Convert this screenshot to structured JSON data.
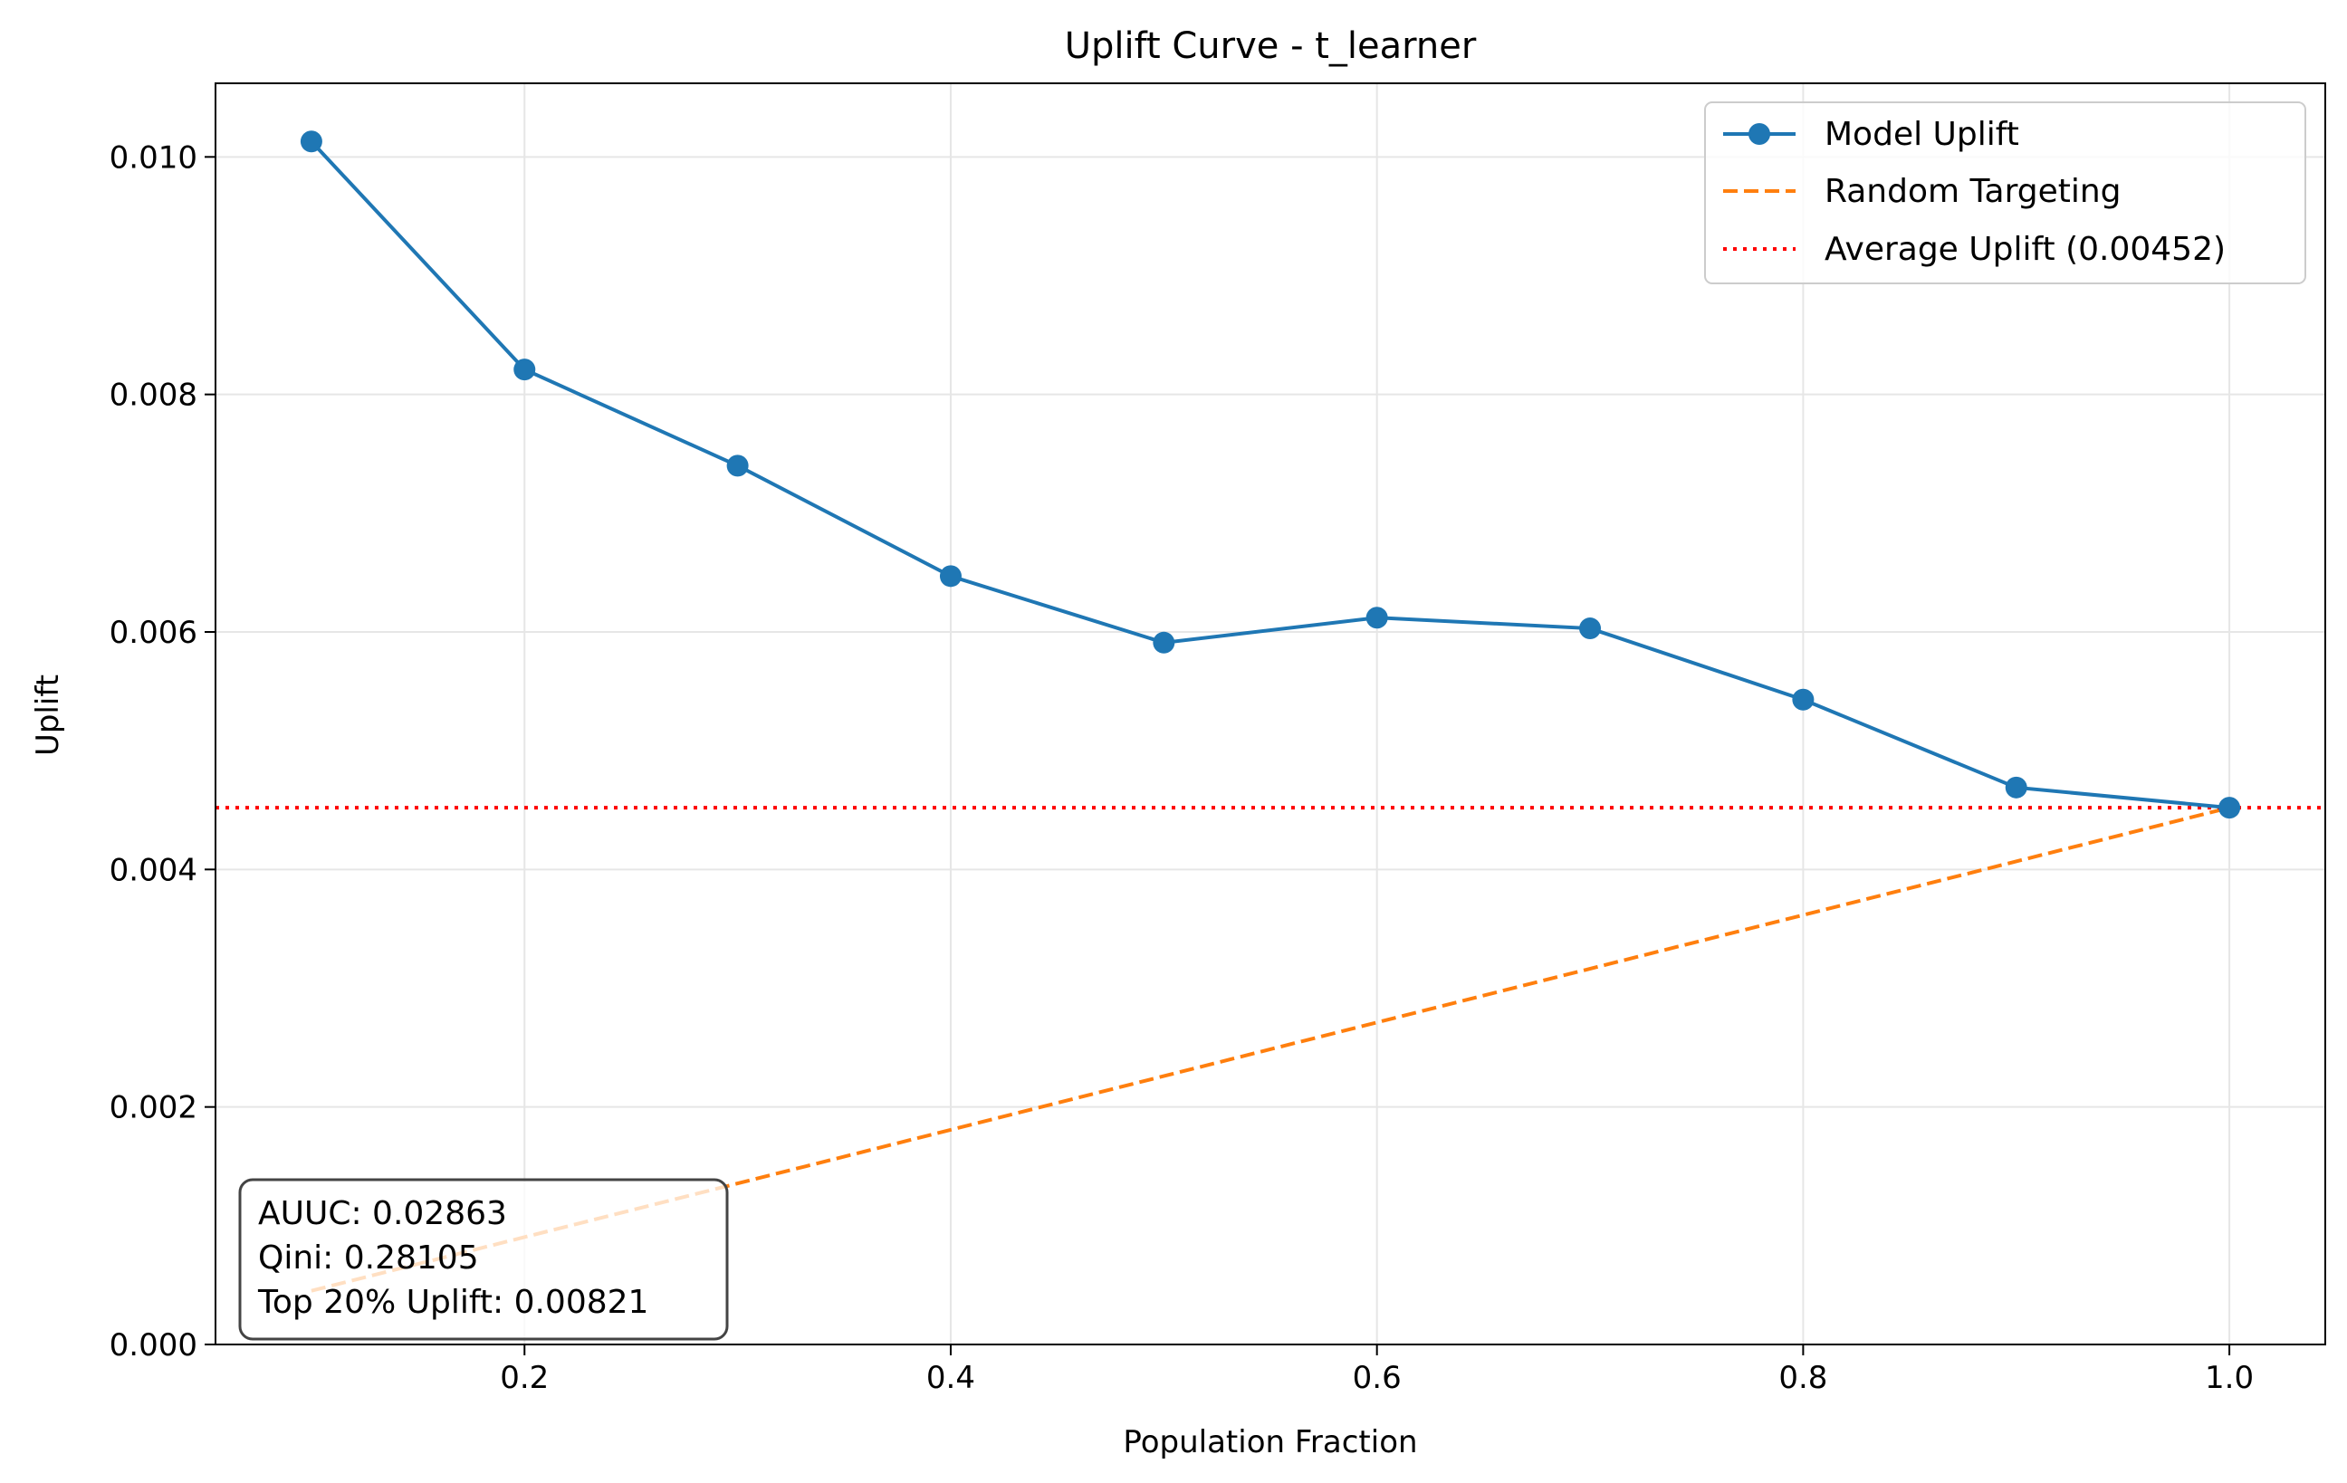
{
  "chart_data": {
    "type": "line",
    "title": "Uplift Curve - t_learner",
    "xlabel": "Population Fraction",
    "ylabel": "Uplift",
    "xlim": [
      0.055,
      1.045
    ],
    "ylim": [
      0.0,
      0.01062
    ],
    "x_ticks": [
      0.2,
      0.4,
      0.6,
      0.8,
      1.0
    ],
    "x_tick_labels": [
      "0.2",
      "0.4",
      "0.6",
      "0.8",
      "1.0"
    ],
    "y_ticks": [
      0.0,
      0.002,
      0.004,
      0.006,
      0.008,
      0.01
    ],
    "y_tick_labels": [
      "0.000",
      "0.002",
      "0.004",
      "0.006",
      "0.008",
      "0.010"
    ],
    "grid": true,
    "legend_position": "top-right",
    "series": [
      {
        "name": "Model Uplift",
        "style": "solid-markers",
        "color": "#1f77b4",
        "x": [
          0.1,
          0.2,
          0.3,
          0.4,
          0.5,
          0.6,
          0.7,
          0.8,
          0.9,
          1.0
        ],
        "y": [
          0.01013,
          0.00821,
          0.0074,
          0.00647,
          0.00591,
          0.00612,
          0.00603,
          0.00543,
          0.00469,
          0.00452
        ]
      },
      {
        "name": "Random Targeting",
        "style": "dashed",
        "color": "#ff7f0e",
        "x": [
          0.1,
          1.0
        ],
        "y": [
          0.000452,
          0.00452
        ]
      },
      {
        "name": "Average Uplift (0.00452)",
        "style": "dotted-hline",
        "color": "#ff0000",
        "y": 0.00452
      }
    ],
    "annotation": {
      "position": "bottom-left",
      "lines": [
        "AUUC: 0.02863",
        "Qini: 0.28105",
        "Top 20% Uplift: 0.00821"
      ]
    }
  }
}
